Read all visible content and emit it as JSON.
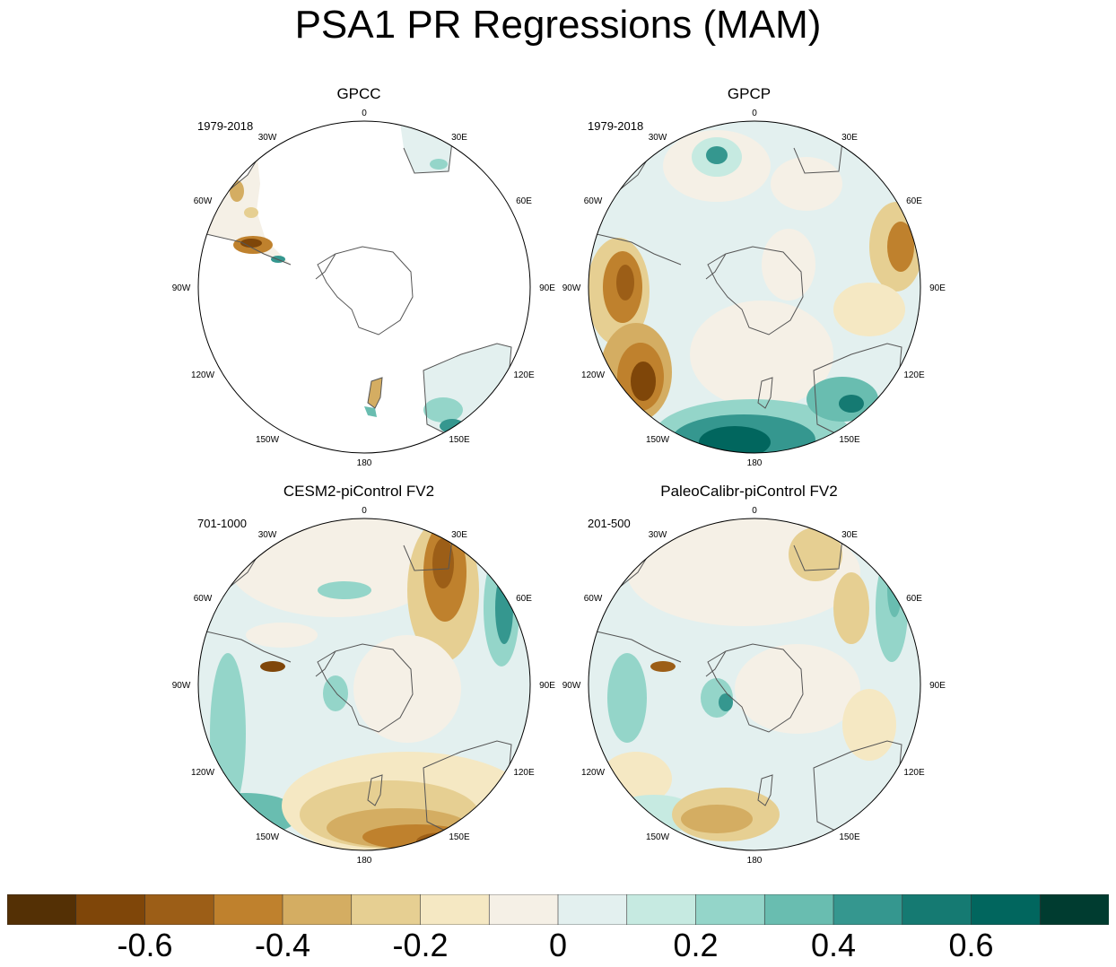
{
  "title": "PSA1 PR Regressions (MAM)",
  "longitude_labels": [
    "0",
    "30E",
    "60E",
    "90E",
    "120E",
    "150E",
    "180",
    "150W",
    "120W",
    "90W",
    "60W",
    "30W"
  ],
  "panels": [
    {
      "title": "GPCC",
      "period": "1979-2018",
      "coverage": "land-only",
      "pattern": "gpcc"
    },
    {
      "title": "GPCP",
      "period": "1979-2018",
      "coverage": "full",
      "pattern": "gpcp"
    },
    {
      "title": "CESM2-piControl FV2",
      "period": "701-1000",
      "coverage": "full",
      "pattern": "cesm"
    },
    {
      "title": "PaleoCalibr-piControl FV2",
      "period": "201-500",
      "coverage": "full",
      "pattern": "paleo"
    }
  ],
  "colorbar": {
    "colors": [
      "#543005",
      "#7f4609",
      "#9c5e17",
      "#bf812d",
      "#d4ad62",
      "#e6cf92",
      "#f5e8c3",
      "#f5f0e6",
      "#e3f0ef",
      "#c6eae1",
      "#94d5c9",
      "#69bdb0",
      "#35978f",
      "#157a72",
      "#01665e",
      "#003c30"
    ],
    "tick_labels": [
      "-0.6",
      "-0.4",
      "-0.2",
      "0",
      "0.2",
      "0.4",
      "0.6"
    ],
    "tick_values": [
      -0.6,
      -0.4,
      -0.2,
      0,
      0.2,
      0.4,
      0.6
    ],
    "min": -0.8,
    "max": 0.8
  }
}
